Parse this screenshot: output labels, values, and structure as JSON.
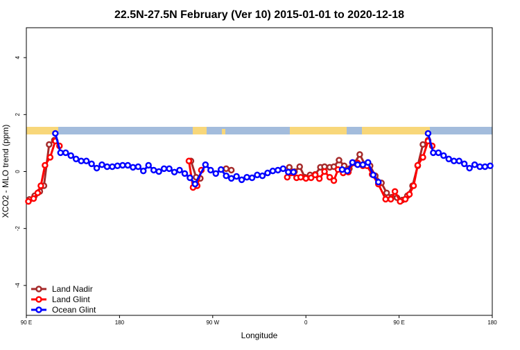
{
  "chart_data": {
    "type": "line",
    "title": "22.5N-27.5N February (Ver 10)   2015-01-01 to 2020-12-18",
    "x_label": "Longitude",
    "y_label": "XCO2 - MLO trend (ppm)",
    "xlim": [
      90,
      540
    ],
    "ylim": [
      -5.05,
      5.05
    ],
    "xticks": [
      {
        "value": 90,
        "label": "90 E"
      },
      180,
      {
        "value": 270,
        "label": "90 W"
      },
      {
        "value": 360,
        "label": "0"
      },
      {
        "value": 450,
        "label": "90 E"
      },
      {
        "value": 540,
        "label": "180"
      }
    ],
    "yticks": [
      -4,
      -2,
      0,
      2,
      4
    ],
    "legend": "bottomleft",
    "series": [
      {
        "name": "Land Nadir",
        "color": "#a52a2a",
        "x": [
          93,
          98,
          103,
          107,
          112,
          117,
          180,
          249,
          254,
          258,
          270,
          283,
          288,
          310,
          344,
          349,
          354,
          359,
          364,
          369,
          374,
          378,
          383,
          387,
          392,
          397,
          402,
          407,
          412,
          417,
          422,
          427,
          433,
          438,
          443,
          448,
          453,
          458,
          463,
          468,
          473,
          478
        ],
        "values": [
          -0.98,
          -0.85,
          -0.7,
          -0.5,
          0.95,
          1.1,
          null,
          0.37,
          -0.2,
          -0.24,
          null,
          0.1,
          0.05,
          null,
          0.15,
          0.0,
          0.17,
          -0.2,
          -0.12,
          -0.1,
          0.15,
          0.17,
          0.15,
          0.17,
          0.4,
          0.2,
          0.1,
          0.3,
          0.6,
          0.25,
          0.2,
          -0.15,
          -0.4,
          -0.75,
          -0.9,
          -0.92,
          -1.0,
          -0.85,
          -0.5,
          0.2,
          0.95,
          1.1
        ]
      },
      {
        "name": "Land Glint",
        "color": "#ff0000",
        "x": [
          92,
          97,
          101,
          104,
          108,
          113,
          118,
          122,
          180,
          247,
          251,
          255,
          259,
          300,
          342,
          346,
          351,
          355,
          360,
          365,
          369,
          373,
          378,
          383,
          387,
          391,
          396,
          401,
          405,
          410,
          415,
          419,
          424,
          430,
          437,
          442,
          446,
          451,
          456,
          460,
          464,
          468,
          473,
          478,
          482
        ],
        "values": [
          -1.05,
          -0.95,
          -0.75,
          -0.5,
          0.22,
          0.5,
          1.07,
          0.9,
          null,
          0.37,
          -0.56,
          -0.5,
          0.05,
          null,
          -0.2,
          -0.05,
          -0.22,
          -0.2,
          -0.24,
          -0.22,
          -0.12,
          -0.25,
          0.0,
          -0.2,
          -0.32,
          0.07,
          -0.05,
          -0.02,
          0.3,
          0.3,
          0.2,
          0.2,
          -0.1,
          -0.44,
          -0.97,
          -0.97,
          -0.7,
          -1.05,
          -0.97,
          -0.8,
          -0.5,
          0.22,
          0.5,
          1.07,
          0.9
        ]
      },
      {
        "name": "Ocean Glint",
        "color": "#0000ff",
        "x": [
          118,
          123,
          128,
          133,
          138,
          143,
          148,
          153,
          158,
          163,
          168,
          173,
          178,
          183,
          188,
          193,
          198,
          203,
          208,
          213,
          218,
          223,
          228,
          233,
          238,
          243,
          248,
          253,
          263,
          268,
          273,
          278,
          283,
          288,
          293,
          298,
          303,
          308,
          313,
          318,
          323,
          328,
          333,
          338,
          343,
          348,
          370,
          395,
          400,
          405,
          410,
          415,
          420,
          425,
          430,
          455,
          478,
          483,
          488,
          493,
          498,
          503,
          508,
          513,
          518,
          523,
          528,
          533,
          538
        ],
        "values": [
          1.34,
          0.66,
          0.66,
          0.56,
          0.44,
          0.37,
          0.37,
          0.27,
          0.12,
          0.24,
          0.17,
          0.17,
          0.2,
          0.22,
          0.22,
          0.15,
          0.17,
          0.02,
          0.22,
          0.05,
          0.0,
          0.1,
          0.1,
          -0.02,
          0.05,
          -0.07,
          -0.22,
          -0.44,
          0.24,
          0.05,
          -0.07,
          0.07,
          -0.15,
          -0.24,
          -0.17,
          -0.29,
          -0.2,
          -0.22,
          -0.12,
          -0.15,
          -0.05,
          0.02,
          0.05,
          0.1,
          -0.02,
          -0.02,
          null,
          0.07,
          0.02,
          0.32,
          0.24,
          0.24,
          0.32,
          -0.12,
          -0.37,
          null,
          1.34,
          0.66,
          0.66,
          0.56,
          0.44,
          0.37,
          0.37,
          0.27,
          0.12,
          0.24,
          0.17,
          0.17,
          0.2
        ]
      }
    ]
  }
}
